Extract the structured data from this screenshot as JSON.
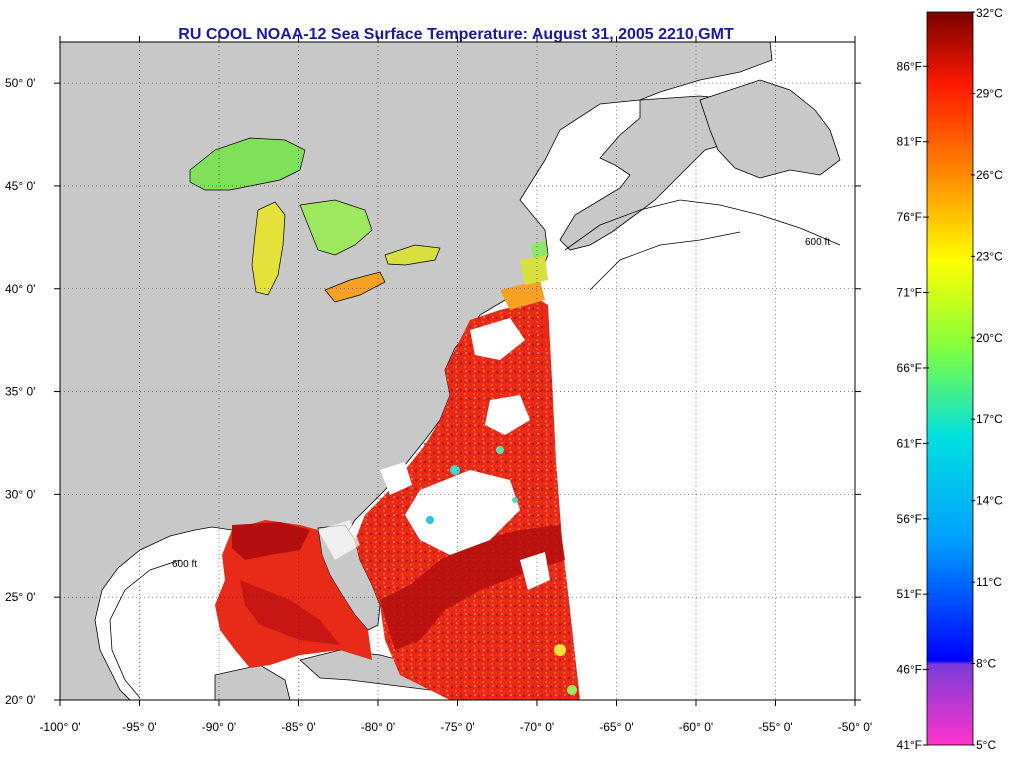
{
  "title": "RU COOL  NOAA-12  Sea Surface Temperature:  August 31, 2005 2210 GMT",
  "map": {
    "lon_range": [
      -100,
      -50
    ],
    "lat_range": [
      20,
      52
    ],
    "lon_ticks": [
      {
        "value": -100,
        "label": "-100° 0'"
      },
      {
        "value": -95,
        "label": "-95° 0'"
      },
      {
        "value": -90,
        "label": "-90° 0'"
      },
      {
        "value": -85,
        "label": "-85° 0'"
      },
      {
        "value": -80,
        "label": "-80° 0'"
      },
      {
        "value": -75,
        "label": "-75° 0'"
      },
      {
        "value": -70,
        "label": "-70° 0'"
      },
      {
        "value": -65,
        "label": "-65° 0'"
      },
      {
        "value": -60,
        "label": "-60° 0'"
      },
      {
        "value": -55,
        "label": "-55° 0'"
      },
      {
        "value": -50,
        "label": "-50° 0'"
      }
    ],
    "lat_ticks": [
      {
        "value": 20,
        "label": "20° 0'"
      },
      {
        "value": 25,
        "label": "25° 0'"
      },
      {
        "value": 30,
        "label": "30° 0'"
      },
      {
        "value": 35,
        "label": "35° 0'"
      },
      {
        "value": 40,
        "label": "40° 0'"
      },
      {
        "value": 45,
        "label": "45° 0'"
      },
      {
        "value": 50,
        "label": "50° 0'"
      }
    ],
    "grid": "dotted",
    "contour_label": "600 ft",
    "colors": {
      "land": "#c8c8c8",
      "no_data": "#ffffff",
      "coastline": "#000000",
      "warm": "#e82a18",
      "hot": "#b40e0e",
      "lake_green": "#7fe05a",
      "lake_yellow": "#e4e23a"
    }
  },
  "colorbar": {
    "min_c": 5,
    "max_c": 32,
    "stops": [
      {
        "offset": 0.0,
        "color": "#ff33cc"
      },
      {
        "offset": 0.11,
        "color": "#7a3cd8"
      },
      {
        "offset": 0.115,
        "color": "#0000ff"
      },
      {
        "offset": 0.28,
        "color": "#00a0ff"
      },
      {
        "offset": 0.42,
        "color": "#00e0e0"
      },
      {
        "offset": 0.54,
        "color": "#80ff40"
      },
      {
        "offset": 0.66,
        "color": "#ffff00"
      },
      {
        "offset": 0.78,
        "color": "#ff8800"
      },
      {
        "offset": 0.9,
        "color": "#ff1a00"
      },
      {
        "offset": 1.0,
        "color": "#7a0000"
      }
    ],
    "celsius_labels": [
      "32°C",
      "29°C",
      "26°C",
      "23°C",
      "20°C",
      "17°C",
      "14°C",
      "11°C",
      "8°C",
      "5°C"
    ],
    "fahrenheit_labels": [
      "86°F",
      "81°F",
      "76°F",
      "71°F",
      "66°F",
      "61°F",
      "56°F",
      "51°F",
      "46°F",
      "41°F"
    ]
  }
}
